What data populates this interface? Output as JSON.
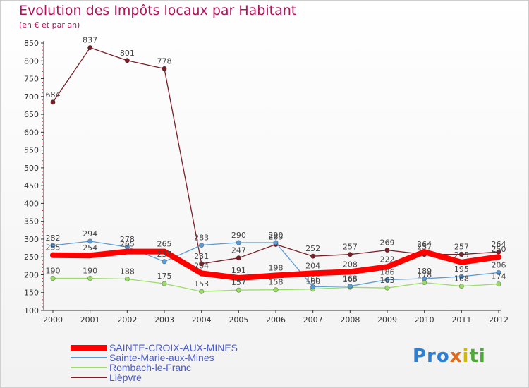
{
  "title": "Evolution des Impôts locaux par Habitant",
  "subtitle": "(en € et par an)",
  "logo": "Proxiti",
  "chart_data": {
    "type": "line",
    "x": [
      "2000",
      "2001",
      "2002",
      "2003",
      "2004",
      "2005",
      "2006",
      "2007",
      "2008",
      "2009",
      "2010",
      "2011",
      "2012"
    ],
    "ylim": [
      100,
      850
    ],
    "yticks": [
      100,
      150,
      200,
      250,
      300,
      350,
      400,
      450,
      500,
      550,
      600,
      650,
      700,
      750,
      800,
      850
    ],
    "grid": false,
    "legend_position": "bottom-left",
    "series": [
      {
        "name": "SAINTE-CROIX-AUX-MINES",
        "color": "#ff0000",
        "values": [
          255,
          254,
          265,
          265,
          204,
          191,
          198,
          204,
          208,
          222,
          264,
          235,
          250
        ],
        "labels": [
          "255",
          "254",
          "265",
          "265",
          "204",
          "191",
          "198",
          "204",
          "208",
          "222",
          "264",
          "235",
          "250"
        ]
      },
      {
        "name": "Sainte-Marie-aux-Mines",
        "color": "#5b9bd5",
        "values": [
          282,
          294,
          278,
          237,
          283,
          290,
          290,
          166,
          168,
          186,
          189,
          195,
          206
        ],
        "labels": [
          "282",
          "294",
          "278",
          "237",
          "283",
          "290",
          "290",
          "166",
          "168",
          "186",
          "189",
          "195",
          "206"
        ]
      },
      {
        "name": "Rombach-le-Franc",
        "color": "#99dd66",
        "values": [
          190,
          190,
          188,
          175,
          153,
          157,
          158,
          160,
          165,
          163,
          178,
          168,
          174
        ],
        "labels": [
          "190",
          "190",
          "188",
          "175",
          "153",
          "157",
          "158",
          "160",
          "165",
          "163",
          "178",
          "168",
          "174"
        ]
      },
      {
        "name": "Lièpvre",
        "color": "#7a1f28",
        "values": [
          684,
          837,
          801,
          778,
          231,
          247,
          285,
          252,
          257,
          269,
          257,
          257,
          264
        ],
        "labels": [
          "684",
          "837",
          "801",
          "778",
          "231",
          "247",
          "285",
          "252",
          "257",
          "269",
          "257",
          "257",
          "264"
        ]
      }
    ]
  }
}
